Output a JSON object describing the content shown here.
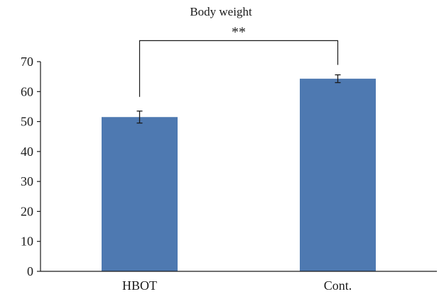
{
  "chart_data": {
    "type": "bar",
    "title": "Body weight",
    "xlabel": "",
    "ylabel": "",
    "categories": [
      "HBOT",
      "Cont."
    ],
    "values": [
      51.5,
      64.3
    ],
    "error": [
      2.0,
      1.3
    ],
    "ylim": [
      0,
      70
    ],
    "yticks": [
      "0",
      "10",
      "20",
      "30",
      "40",
      "50",
      "60",
      "70"
    ],
    "grid": false,
    "bar_color": "#4e79b1",
    "significance": {
      "from": 0,
      "to": 1,
      "label": "**",
      "y": 77
    }
  }
}
